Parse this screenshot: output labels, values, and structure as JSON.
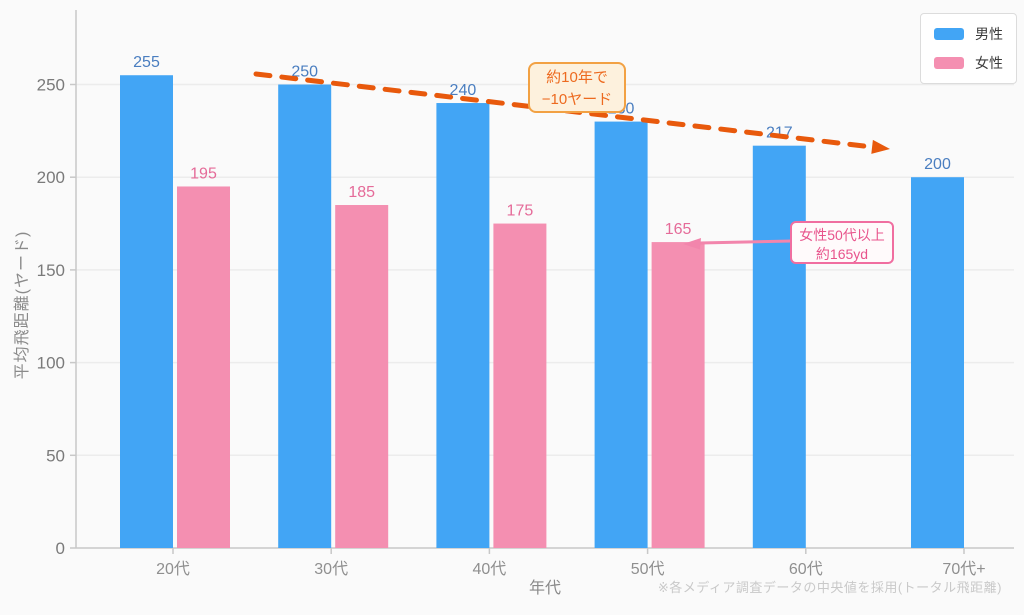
{
  "chart_data": {
    "type": "bar",
    "title": "",
    "categories": [
      "20代",
      "30代",
      "40代",
      "50代",
      "60代",
      "70代+"
    ],
    "series": [
      {
        "name": "男性",
        "color": "#42a5f5",
        "label_color": "#4a7ec0",
        "values": [
          255,
          250,
          240,
          230,
          217,
          200
        ]
      },
      {
        "name": "女性",
        "color": "#f48fb1",
        "label_color": "#e56b99",
        "values": [
          195,
          185,
          175,
          165,
          null,
          null
        ]
      }
    ],
    "xlabel": "年代",
    "ylabel": "平均飛距離(ヤード)",
    "ylim": [
      0,
      285
    ],
    "yticks": [
      0,
      50,
      100,
      150,
      200,
      250
    ],
    "grid": true,
    "legend_position": "top-right"
  },
  "legend": {
    "items": [
      {
        "label": "男性",
        "color": "#42a5f5"
      },
      {
        "label": "女性",
        "color": "#f48fb1"
      }
    ]
  },
  "annotations": {
    "trend": {
      "line1": "約10年で",
      "line2": "−10ヤード",
      "text_color": "#ed6a1f",
      "border_color": "#f2a143",
      "bg_color": "#fdf1dd",
      "arrow_color": "#e8590c"
    },
    "female_note": {
      "line1": "女性50代以上",
      "line2": "約165yd",
      "text_color": "#e8548c",
      "border_color": "#f06ea0",
      "bg_color": "#fffafb",
      "arrow_color": "#f285ac"
    }
  },
  "footer": {
    "note": "※各メディア調査データの中央値を採用(トータル飛距離)"
  },
  "colors": {
    "background": "#fafafa",
    "gridline": "#ececec",
    "axis": "#c8c8c8",
    "tick_label": "#7a7a7a",
    "category_label": "#8f8f8f"
  }
}
